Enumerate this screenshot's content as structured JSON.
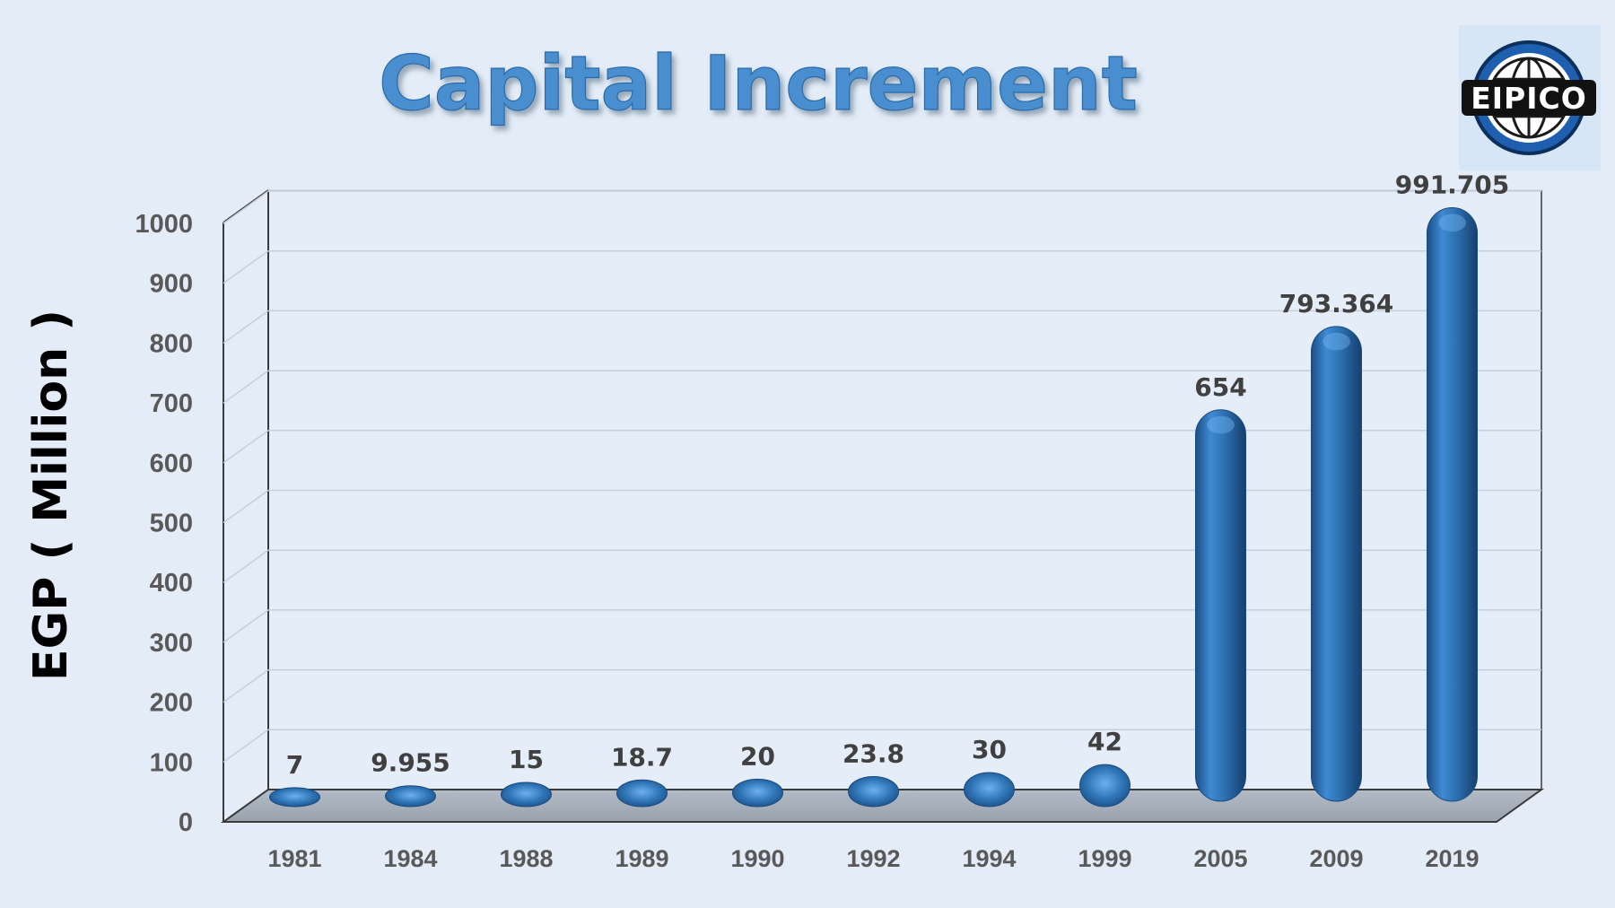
{
  "colors": {
    "background": "#e3ecf7",
    "bar": "#2e74b5",
    "title": "#4a8fd0",
    "floor": "#a5aeb8",
    "logo_ring": "#1f5fb0"
  },
  "logo": {
    "icon": "globe-icon",
    "text": "EIPICO"
  },
  "chart_data": {
    "type": "bar",
    "style": "3d-cylinder",
    "title": "Capital Increment",
    "xlabel": "",
    "ylabel": "EGP ( Million )",
    "ylim": [
      0,
      1000
    ],
    "yticks": [
      0,
      100,
      200,
      300,
      400,
      500,
      600,
      700,
      800,
      900,
      1000
    ],
    "ytick_labels": [
      "0",
      "100",
      "200",
      "300",
      "400",
      "500",
      "600",
      "700",
      "800",
      "900",
      "1000"
    ],
    "grid": true,
    "categories": [
      "1981",
      "1984",
      "1988",
      "1989",
      "1990",
      "1992",
      "1994",
      "1999",
      "2005",
      "2009",
      "2019"
    ],
    "values": [
      7,
      9.955,
      15,
      18.7,
      20,
      23.8,
      30,
      42,
      654,
      793.364,
      991.705
    ],
    "value_labels": [
      "7",
      "9.955",
      "15",
      "18.7",
      "20",
      "23.8",
      "30",
      "42",
      "654",
      "793.364",
      "991.705"
    ]
  }
}
